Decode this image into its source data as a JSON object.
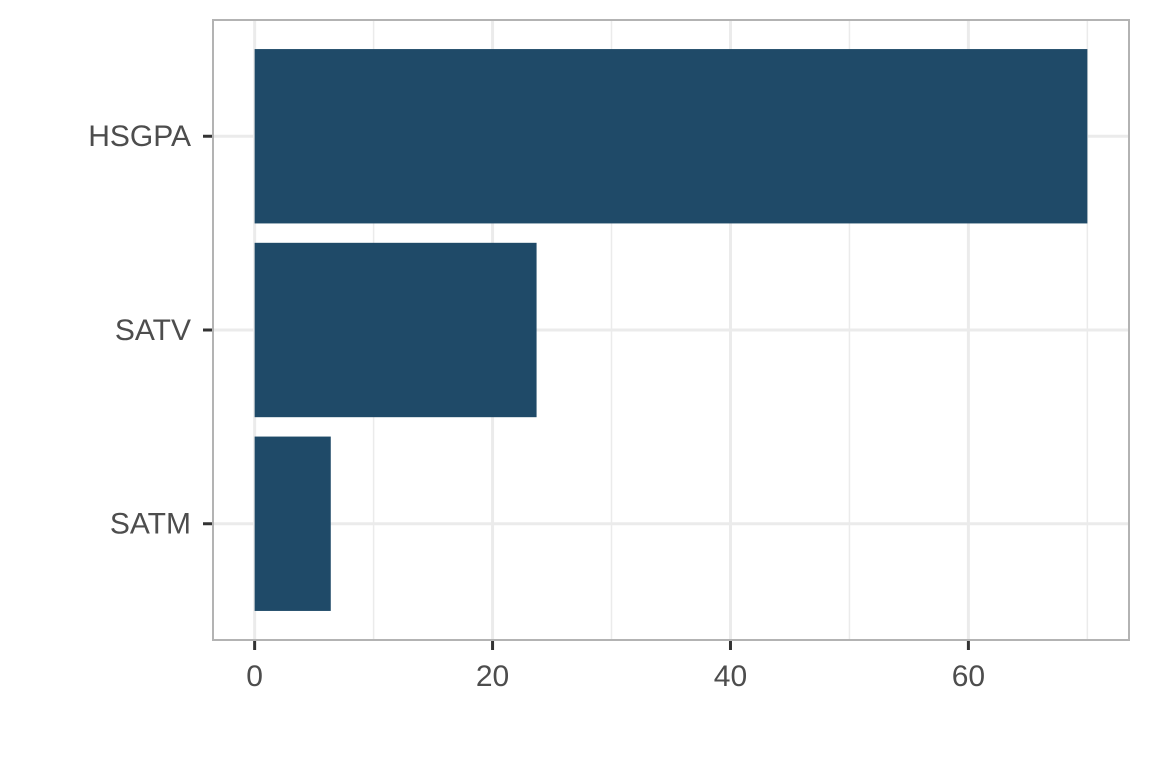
{
  "chart_data": {
    "type": "barh",
    "categories": [
      "HSGPA",
      "SATV",
      "SATM"
    ],
    "values": [
      70,
      23.7,
      6.4
    ],
    "color": "#1f4a68",
    "xlim": [
      -3.5,
      73.5
    ],
    "xticks": [
      0,
      20,
      40,
      60
    ],
    "minor_grid": [
      10,
      30,
      50,
      70
    ],
    "grid": true
  }
}
